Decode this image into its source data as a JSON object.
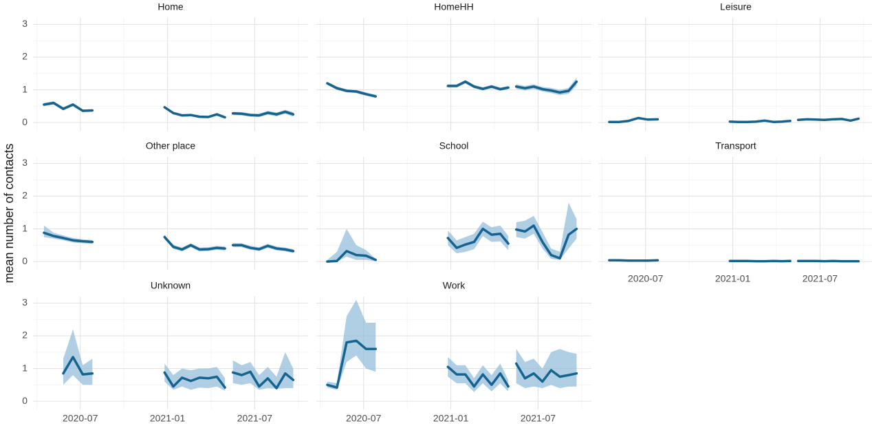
{
  "chart_data": {
    "type": "line",
    "ylabel": "mean number of contacts",
    "x": [
      3.5,
      4.17,
      4.83,
      5.5,
      6.17,
      6.83,
      9.3,
      11.8,
      12.4,
      13.0,
      13.6,
      14.2,
      14.8,
      15.4,
      15.95,
      16.22,
      16.5,
      17.1,
      17.7,
      18.3,
      18.9,
      19.5,
      20.1,
      20.65
    ],
    "xlim": [
      2.75,
      21.67
    ],
    "xticks": [
      {
        "value": 6,
        "label": "2020-07"
      },
      {
        "value": 12,
        "label": "2021-01"
      },
      {
        "value": 18,
        "label": "2021-07"
      }
    ],
    "ylim": [
      -0.25,
      3.2
    ],
    "yticks": [
      0,
      1,
      2,
      3
    ],
    "grid": true,
    "color": "#17638f",
    "ribbon_color": "#8fbbd9",
    "panels": [
      {
        "title": "Home",
        "values": [
          0.55,
          0.6,
          0.42,
          0.55,
          0.36,
          0.37,
          null,
          0.47,
          0.29,
          0.22,
          0.23,
          0.18,
          0.17,
          0.25,
          0.16,
          null,
          0.28,
          0.27,
          0.23,
          0.22,
          0.3,
          0.25,
          0.33,
          0.25
        ],
        "lower": [
          0.5,
          0.55,
          0.37,
          0.5,
          0.32,
          0.33,
          null,
          0.43,
          0.25,
          0.18,
          0.19,
          0.14,
          0.13,
          0.21,
          0.12,
          null,
          0.23,
          0.22,
          0.18,
          0.17,
          0.24,
          0.19,
          0.27,
          0.18
        ],
        "upper": [
          0.6,
          0.65,
          0.47,
          0.6,
          0.4,
          0.41,
          null,
          0.51,
          0.33,
          0.26,
          0.27,
          0.22,
          0.21,
          0.29,
          0.2,
          null,
          0.33,
          0.32,
          0.28,
          0.27,
          0.36,
          0.31,
          0.39,
          0.32
        ]
      },
      {
        "title": "HomeHH",
        "values": [
          1.2,
          1.05,
          0.97,
          0.95,
          0.87,
          0.8,
          null,
          1.12,
          1.12,
          1.25,
          1.1,
          1.03,
          1.1,
          1.02,
          1.07,
          null,
          1.1,
          1.05,
          1.1,
          1.02,
          0.98,
          0.92,
          0.97,
          1.25
        ],
        "lower": [
          1.15,
          1.0,
          0.92,
          0.9,
          0.82,
          0.75,
          null,
          1.07,
          1.07,
          1.2,
          1.05,
          0.98,
          1.05,
          0.97,
          1.02,
          null,
          1.03,
          0.98,
          1.03,
          0.95,
          0.9,
          0.84,
          0.88,
          1.13
        ],
        "upper": [
          1.25,
          1.1,
          1.02,
          1.0,
          0.92,
          0.85,
          null,
          1.17,
          1.17,
          1.3,
          1.15,
          1.08,
          1.15,
          1.07,
          1.12,
          null,
          1.17,
          1.12,
          1.17,
          1.09,
          1.06,
          1.0,
          1.06,
          1.37
        ]
      },
      {
        "title": "Leisure",
        "values": [
          0.02,
          0.02,
          0.05,
          0.14,
          0.09,
          0.1,
          null,
          0.03,
          0.02,
          0.02,
          0.03,
          0.06,
          0.02,
          0.03,
          0.05,
          null,
          0.08,
          0.1,
          0.09,
          0.08,
          0.1,
          0.11,
          0.06,
          0.12
        ],
        "lower": [
          0.0,
          0.0,
          0.03,
          0.11,
          0.07,
          0.08,
          null,
          0.01,
          0.0,
          0.0,
          0.01,
          0.04,
          0.0,
          0.01,
          0.03,
          null,
          0.05,
          0.07,
          0.06,
          0.05,
          0.07,
          0.08,
          0.04,
          0.09
        ],
        "upper": [
          0.04,
          0.04,
          0.07,
          0.17,
          0.11,
          0.12,
          null,
          0.05,
          0.04,
          0.04,
          0.05,
          0.08,
          0.04,
          0.05,
          0.07,
          null,
          0.11,
          0.13,
          0.12,
          0.11,
          0.13,
          0.14,
          0.08,
          0.15
        ]
      },
      {
        "title": "Other place",
        "values": [
          0.88,
          0.78,
          0.72,
          0.65,
          0.62,
          0.6,
          null,
          0.75,
          0.45,
          0.37,
          0.5,
          0.37,
          0.38,
          0.42,
          0.4,
          null,
          0.5,
          0.5,
          0.42,
          0.38,
          0.48,
          0.4,
          0.37,
          0.32
        ],
        "lower": [
          0.75,
          0.7,
          0.65,
          0.58,
          0.56,
          0.54,
          null,
          0.68,
          0.39,
          0.31,
          0.44,
          0.31,
          0.32,
          0.36,
          0.34,
          null,
          0.44,
          0.44,
          0.36,
          0.32,
          0.42,
          0.34,
          0.31,
          0.26
        ],
        "upper": [
          1.1,
          0.88,
          0.8,
          0.72,
          0.68,
          0.66,
          null,
          0.82,
          0.51,
          0.43,
          0.56,
          0.43,
          0.44,
          0.48,
          0.46,
          null,
          0.56,
          0.56,
          0.48,
          0.44,
          0.54,
          0.46,
          0.43,
          0.38
        ]
      },
      {
        "title": "School",
        "values": [
          0.0,
          0.02,
          0.32,
          0.2,
          0.18,
          0.05,
          null,
          0.72,
          0.42,
          0.52,
          0.6,
          1.0,
          0.82,
          0.85,
          0.55,
          null,
          0.98,
          0.92,
          1.1,
          0.6,
          0.2,
          0.1,
          0.82,
          1.0
        ],
        "lower": [
          0.0,
          0.0,
          0.15,
          0.05,
          0.05,
          0.01,
          null,
          0.5,
          0.25,
          0.3,
          0.38,
          0.78,
          0.6,
          0.62,
          0.35,
          null,
          0.75,
          0.7,
          0.85,
          0.4,
          0.08,
          0.05,
          0.4,
          0.7
        ],
        "upper": [
          0.05,
          0.3,
          1.0,
          0.5,
          0.35,
          0.08,
          null,
          0.95,
          0.65,
          0.75,
          0.85,
          1.22,
          1.05,
          1.1,
          0.78,
          null,
          1.2,
          1.25,
          1.4,
          0.9,
          0.4,
          0.3,
          1.8,
          1.3
        ]
      },
      {
        "title": "Transport",
        "values": [
          0.04,
          0.04,
          0.03,
          0.03,
          0.03,
          0.04,
          null,
          0.02,
          0.02,
          0.02,
          0.01,
          0.01,
          0.02,
          0.01,
          0.02,
          null,
          0.02,
          0.02,
          0.02,
          0.01,
          0.02,
          0.01,
          0.01,
          0.01
        ],
        "lower": [
          0.02,
          0.02,
          0.01,
          0.01,
          0.01,
          0.02,
          null,
          0.0,
          0.0,
          0.0,
          0.0,
          0.0,
          0.0,
          0.0,
          0.0,
          null,
          0.0,
          0.0,
          0.0,
          0.0,
          0.0,
          0.0,
          0.0,
          0.0
        ],
        "upper": [
          0.06,
          0.06,
          0.05,
          0.05,
          0.05,
          0.06,
          null,
          0.04,
          0.04,
          0.04,
          0.03,
          0.03,
          0.04,
          0.03,
          0.04,
          null,
          0.04,
          0.04,
          0.04,
          0.03,
          0.04,
          0.03,
          0.03,
          0.03
        ]
      },
      {
        "title": "Unknown",
        "values": [
          null,
          null,
          0.85,
          1.35,
          0.82,
          0.85,
          null,
          0.88,
          0.45,
          0.72,
          0.62,
          0.72,
          0.7,
          0.75,
          0.42,
          null,
          0.88,
          0.8,
          0.9,
          0.45,
          0.7,
          0.4,
          0.85,
          0.65
        ],
        "lower": [
          null,
          null,
          0.5,
          0.8,
          0.5,
          0.5,
          null,
          0.6,
          0.35,
          0.45,
          0.35,
          0.42,
          0.4,
          0.45,
          0.32,
          null,
          0.55,
          0.5,
          0.55,
          0.35,
          0.4,
          0.38,
          0.4,
          0.4
        ],
        "upper": [
          null,
          null,
          1.3,
          2.2,
          1.1,
          1.3,
          null,
          1.15,
          0.8,
          1.0,
          0.95,
          1.0,
          1.0,
          1.05,
          0.7,
          null,
          1.25,
          1.1,
          1.2,
          0.8,
          1.05,
          0.75,
          1.5,
          1.0
        ]
      },
      {
        "title": "Work",
        "values": [
          0.5,
          0.42,
          1.8,
          1.85,
          1.6,
          1.6,
          null,
          1.05,
          0.82,
          0.82,
          0.45,
          0.82,
          0.5,
          0.85,
          0.45,
          null,
          1.15,
          0.7,
          0.85,
          0.6,
          0.95,
          0.75,
          0.8,
          0.85
        ],
        "lower": [
          0.42,
          0.35,
          1.2,
          1.4,
          1.0,
          0.9,
          null,
          0.75,
          0.55,
          0.55,
          0.28,
          0.55,
          0.3,
          0.55,
          0.3,
          null,
          0.55,
          0.4,
          0.45,
          0.4,
          0.5,
          0.4,
          0.45,
          0.45
        ],
        "upper": [
          0.6,
          0.55,
          2.6,
          3.1,
          2.4,
          2.4,
          null,
          1.35,
          1.1,
          1.1,
          0.7,
          1.1,
          0.8,
          1.15,
          0.65,
          null,
          1.6,
          1.2,
          1.3,
          1.0,
          1.5,
          1.6,
          1.5,
          1.45
        ]
      }
    ]
  }
}
